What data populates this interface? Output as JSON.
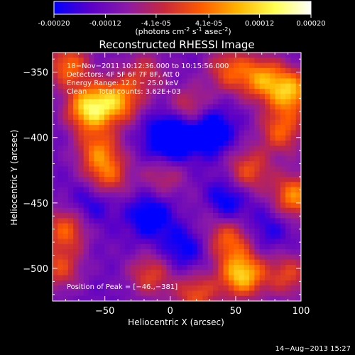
{
  "colorbar": {
    "ticks": [
      "-0.00020",
      "-0.00012",
      "-4.1e-05",
      "4.1e-05",
      "0.00012",
      "0.00020"
    ],
    "tick_values": [
      -0.0002,
      -0.00012,
      -4.1e-05,
      4.1e-05,
      0.00012,
      0.0002
    ],
    "range": [
      -0.0002,
      0.0002
    ],
    "units_prefix": "(photons cm",
    "units_exp1": "-2",
    "units_mid": " s",
    "units_exp2": "-1",
    "units_mid2": " asec",
    "units_exp3": "-2",
    "units_suffix": ")",
    "colors": [
      "#0000ff",
      "#5b00c8",
      "#8c1aa6",
      "#c8283c",
      "#ff5a00",
      "#ffb400",
      "#ffff50",
      "#ffffff"
    ]
  },
  "chart_data": {
    "type": "heatmap",
    "title": "Reconstructed RHESSI Image",
    "xlabel": "Heliocentric X (arcsec)",
    "ylabel": "Heliocentric Y (arcsec)",
    "xlim": [
      -90,
      100
    ],
    "ylim": [
      -525,
      -335
    ],
    "xticks": [
      -50,
      0,
      50,
      100
    ],
    "xtick_labels": [
      "−50",
      "0",
      "50",
      "100"
    ],
    "yticks": [
      -350,
      -400,
      -450,
      -500
    ],
    "ytick_labels": [
      "−350",
      "−400",
      "−450",
      "−500"
    ],
    "annotations": {
      "time": "18−Nov−2011 10:12:36.000 to 10:15:56.000",
      "detectors": "Detectors: 4F 5F 6F 7F 8F, Att 0",
      "energy": "Energy Range: 12.0 − 25.0 keV",
      "clean": "Clean     Total counts: 3.62E+03",
      "peak": "Position of Peak = [−46.,−381]"
    },
    "peak_position": [
      -46,
      -381
    ],
    "blobs": [
      {
        "x": -62,
        "y": -378,
        "v": 1.0
      },
      {
        "x": -40,
        "y": -372,
        "v": 0.75
      },
      {
        "x": -78,
        "y": -345,
        "v": 0.65
      },
      {
        "x": -55,
        "y": -410,
        "v": 0.6
      },
      {
        "x": -48,
        "y": -430,
        "v": 0.55
      },
      {
        "x": -80,
        "y": -470,
        "v": 0.6
      },
      {
        "x": -85,
        "y": -500,
        "v": 0.5
      },
      {
        "x": -20,
        "y": -350,
        "v": 0.4
      },
      {
        "x": 15,
        "y": -378,
        "v": 0.45
      },
      {
        "x": 45,
        "y": -348,
        "v": 0.55
      },
      {
        "x": 70,
        "y": -355,
        "v": 0.7
      },
      {
        "x": 92,
        "y": -365,
        "v": 0.85
      },
      {
        "x": 85,
        "y": -395,
        "v": 0.6
      },
      {
        "x": 60,
        "y": -425,
        "v": 0.55
      },
      {
        "x": 95,
        "y": -445,
        "v": 0.75
      },
      {
        "x": 45,
        "y": -478,
        "v": 0.6
      },
      {
        "x": 55,
        "y": -505,
        "v": 0.95
      },
      {
        "x": 20,
        "y": -520,
        "v": 0.55
      },
      {
        "x": -15,
        "y": -505,
        "v": 0.5
      },
      {
        "x": 90,
        "y": -505,
        "v": 0.5
      },
      {
        "x": -5,
        "y": -430,
        "v": 0.35
      },
      {
        "x": 30,
        "y": -455,
        "v": 0.3
      },
      {
        "x": 0,
        "y": -400,
        "v": -0.8
      },
      {
        "x": 30,
        "y": -395,
        "v": -0.6
      },
      {
        "x": 40,
        "y": -450,
        "v": -0.55
      },
      {
        "x": -15,
        "y": -460,
        "v": -0.45
      },
      {
        "x": 10,
        "y": -485,
        "v": -0.35
      },
      {
        "x": -60,
        "y": -450,
        "v": -0.3
      },
      {
        "x": 75,
        "y": -470,
        "v": -0.25
      }
    ]
  },
  "footer": {
    "date": "14−Aug−2013 15:27"
  }
}
